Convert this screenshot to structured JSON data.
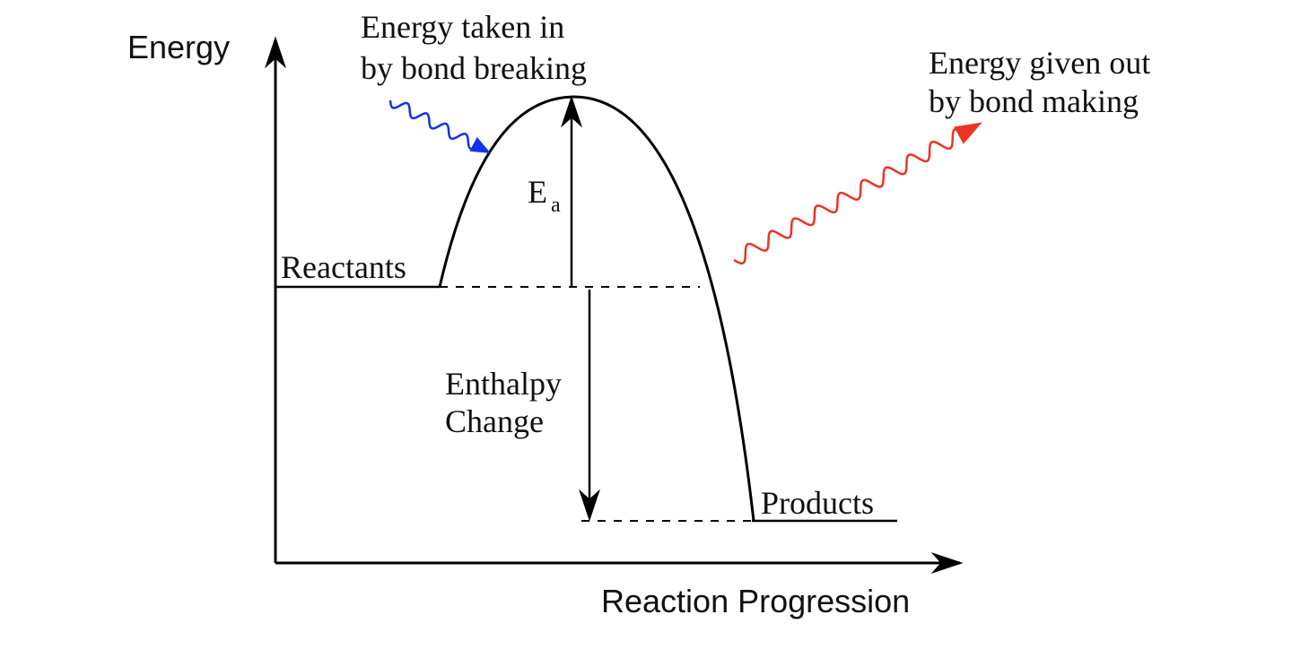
{
  "axes": {
    "y_label": "Energy",
    "x_label": "Reaction Progression"
  },
  "annotations": {
    "bond_breaking": [
      "Energy taken in",
      "by bond breaking"
    ],
    "bond_making": [
      "Energy given out",
      "by bond making"
    ],
    "activation_energy": {
      "symbol": "E",
      "subscript": "a"
    },
    "enthalpy_change": [
      "Enthalpy",
      "Change"
    ]
  },
  "levels": {
    "reactants": "Reactants",
    "products": "Products"
  }
}
